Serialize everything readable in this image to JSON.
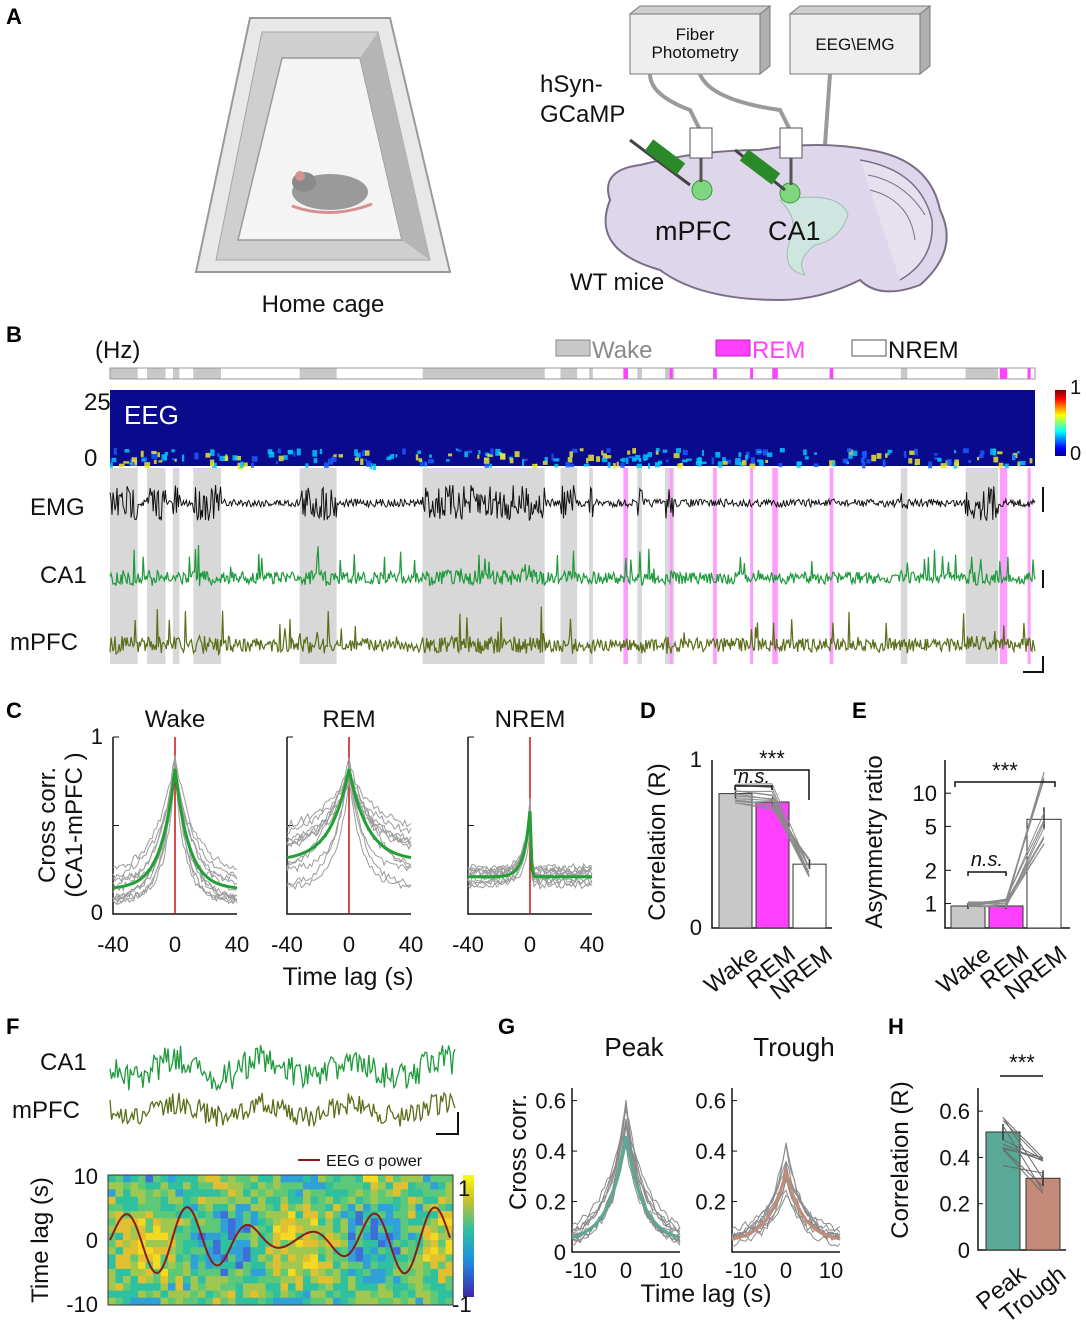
{
  "colors": {
    "wake": "#c8c8c8",
    "rem": "#ff40ff",
    "nrem": "#ffffff",
    "ca1": "#1e9a3c",
    "mpfc": "#5b6e1a",
    "peak": "#5aa896",
    "trough": "#c48a7a",
    "red": "#cc1010",
    "trace": "#9c9c9c"
  },
  "panel_a": {
    "label": "A",
    "cage_label": "Home cage",
    "photometry_box": "Fiber\nPhotometry",
    "eeg_box": "EEG\\EMG",
    "virus": [
      "hSyn-",
      "GCaMP"
    ],
    "region_mpfc": "mPFC",
    "region_ca1": "CA1",
    "mice": "WT mice"
  },
  "panel_b": {
    "label": "B",
    "hz": "(Hz)",
    "legend": {
      "wake": "Wake",
      "rem": "REM",
      "nrem": "NREM"
    },
    "eeg_label": "EEG",
    "y_top": "25",
    "y_bottom": "0",
    "colorbar_max": "1",
    "colorbar_min": "0",
    "traces": [
      "EMG",
      "CA1",
      "mPFC"
    ]
  },
  "panel_c": {
    "label": "C",
    "ylabel_line1": "Cross corr.",
    "ylabel_line2": "(CA1-mPFC )",
    "xlabel": "Time lag (s)",
    "yticks": [
      "1",
      "0"
    ],
    "xticks": [
      "-40",
      "0",
      "40"
    ],
    "titles": [
      "Wake",
      "REM",
      "NREM"
    ]
  },
  "panel_d": {
    "label": "D",
    "ylabel": "Correlation (R)",
    "yticks": [
      "1",
      "0"
    ],
    "ns": "n.s.",
    "sig": "***",
    "categories": [
      "Wake",
      "REM",
      "NREM"
    ],
    "values": [
      0.8,
      0.75,
      0.38
    ]
  },
  "panel_e": {
    "label": "E",
    "ylabel": "Asymmetry ratio",
    "yticks": [
      "10",
      "5",
      "2",
      "1"
    ],
    "ns": "n.s.",
    "sig": "***",
    "categories": [
      "Wake",
      "REM",
      "NREM"
    ],
    "values": [
      0.95,
      0.95,
      5.8
    ]
  },
  "panel_f": {
    "label": "F",
    "traces": [
      "CA1",
      "mPFC"
    ],
    "legend": "EEG σ power",
    "ylabel": "Time lag (s)",
    "yticks": [
      "10",
      "0",
      "-10"
    ],
    "colorbar_max": "1",
    "colorbar_min": "-1"
  },
  "panel_g": {
    "label": "G",
    "titles": [
      "Peak",
      "Trough"
    ],
    "ylabel": "Cross corr.",
    "xlabel": "Time lag (s)",
    "yticks": [
      "0.6",
      "0.4",
      "0.2",
      "0"
    ],
    "xticks": [
      "-10",
      "0",
      "10"
    ]
  },
  "panel_h": {
    "label": "H",
    "ylabel": "Correlation (R)",
    "yticks": [
      "0.6",
      "0.4",
      "0.2",
      "0"
    ],
    "sig": "***",
    "categories": [
      "Peak",
      "Trough"
    ],
    "values": [
      0.51,
      0.31
    ]
  }
}
